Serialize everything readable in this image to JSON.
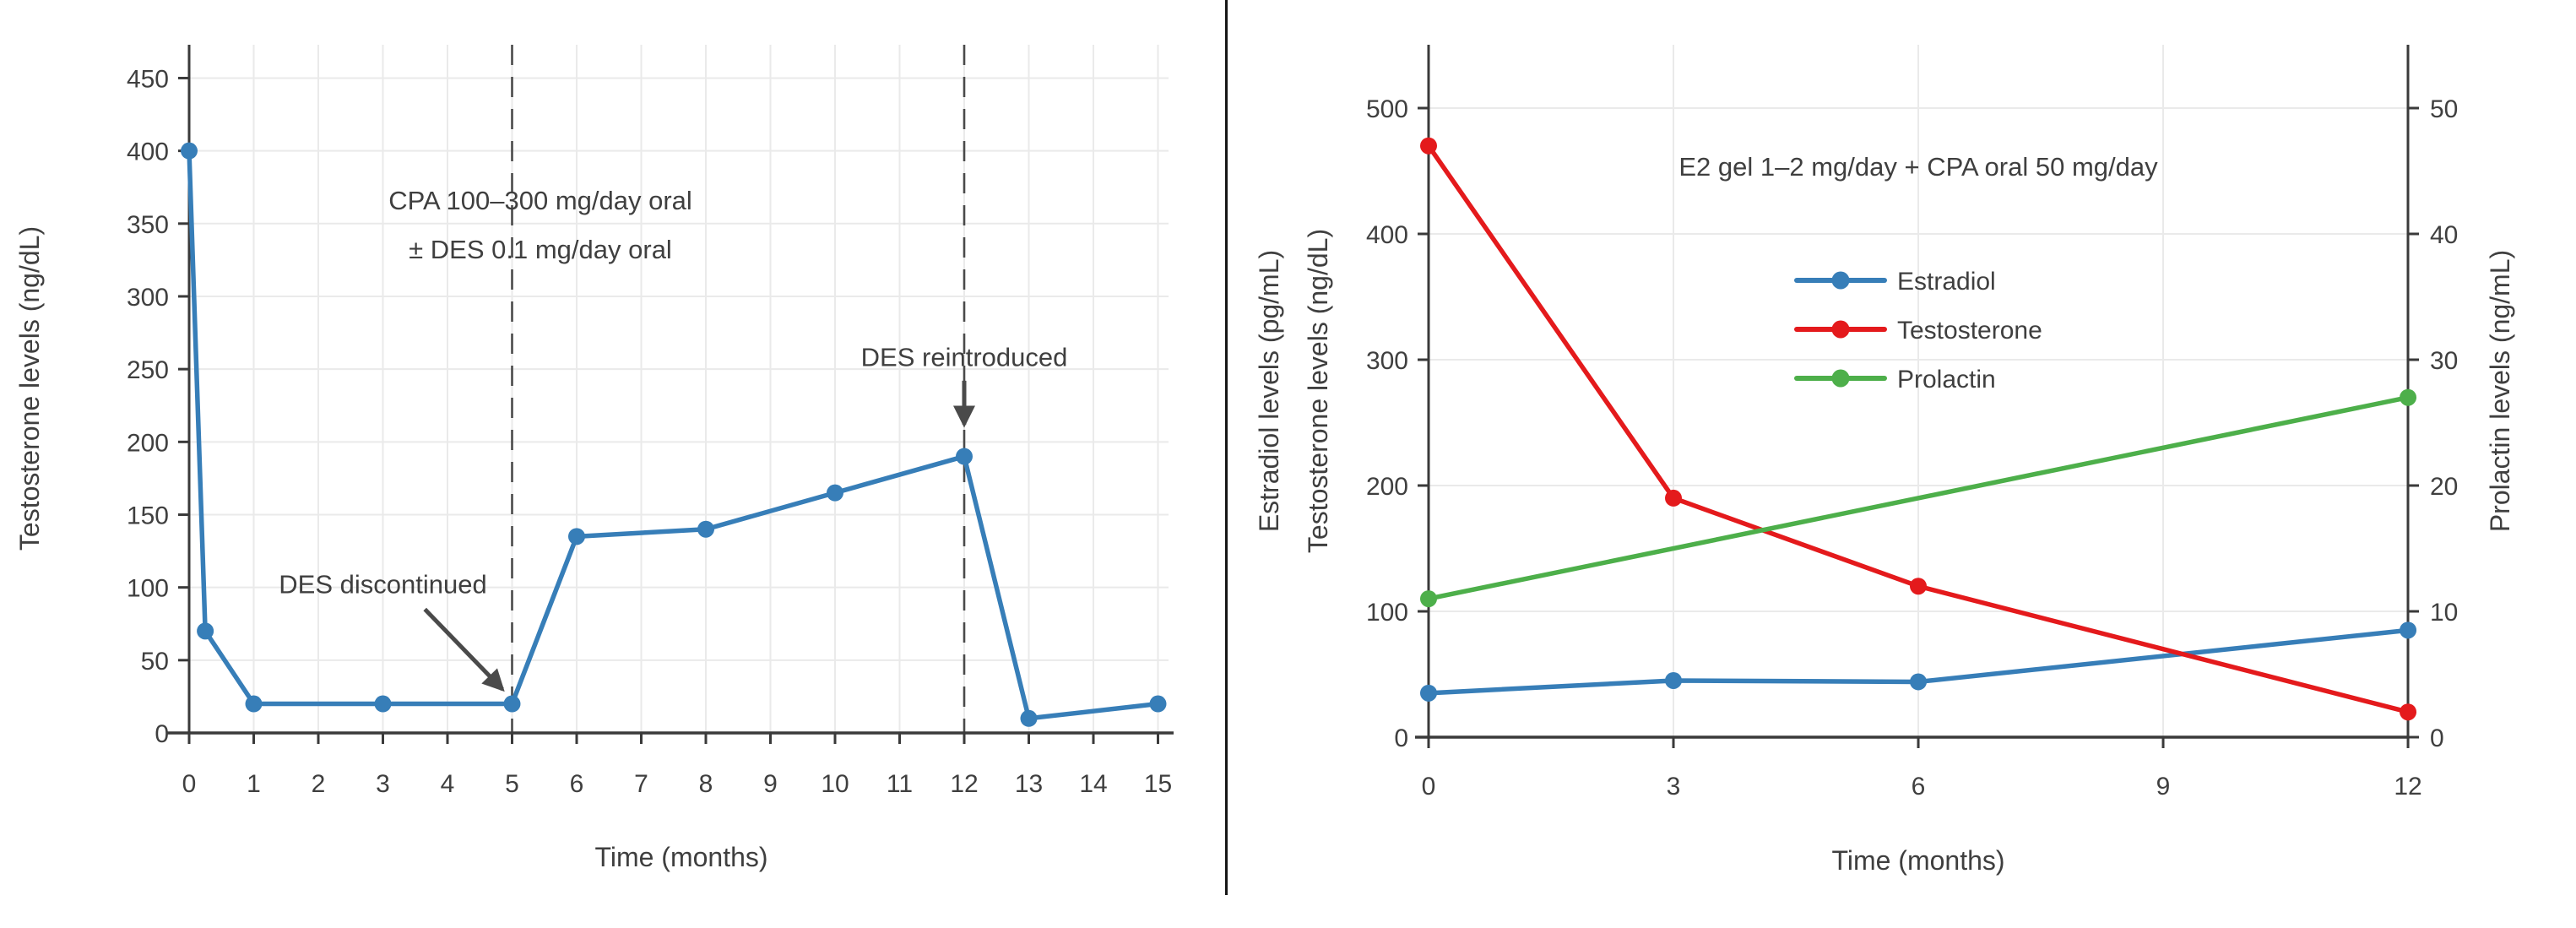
{
  "figure": {
    "background": "#ffffff",
    "text_color": "#3f3f3f",
    "grid_color": "#eaeaea",
    "spine_color": "#3a3a3a",
    "annotation_color": "#4a4a4a"
  },
  "chart_data": [
    {
      "id": "cpa-des-oral-chart",
      "type": "line",
      "inplot_label_lines": [
        "CPA 100–300 mg/day oral",
        "± DES 0.1 mg/day oral"
      ],
      "xlabel": "Time (months)",
      "ylabel": "Testosterone levels (ng/dL)",
      "x_ticks": [
        0,
        1,
        2,
        3,
        4,
        5,
        6,
        7,
        8,
        9,
        10,
        11,
        12,
        13,
        14,
        15
      ],
      "y_ticks": [
        0,
        50,
        100,
        150,
        200,
        250,
        300,
        350,
        400,
        450
      ],
      "xlim": [
        -0.4,
        15.3
      ],
      "ylim": [
        0,
        473
      ],
      "grid": true,
      "legend_position": "none",
      "dashed_vlines_x": [
        5,
        12
      ],
      "series": [
        {
          "name": "Testosterone",
          "color": "#377eb8",
          "x": [
            0,
            0.25,
            1,
            3,
            5,
            6,
            8,
            10,
            12,
            13,
            15
          ],
          "y": [
            400,
            70,
            20,
            20,
            20,
            135,
            140,
            165,
            190,
            10,
            20
          ]
        }
      ],
      "annotations": [
        {
          "text": "DES discontinued",
          "text_x": 3.0,
          "text_y": 96,
          "arrow": {
            "x1": 3.65,
            "y1": 85,
            "x2": 4.85,
            "y2": 30
          }
        },
        {
          "text": "DES reintroduced",
          "text_x": 12,
          "text_y": 252,
          "arrow": {
            "x1": 12,
            "y1": 242,
            "x2": 12,
            "y2": 212
          }
        }
      ]
    },
    {
      "id": "e2-gel-cpa-chart",
      "type": "line",
      "title": "E2 gel 1–2 mg/day + CPA oral 50 mg/day",
      "xlabel": "Time (months)",
      "ylabel_left_outer": "Estradiol levels (pg/mL)",
      "ylabel_left_inner": "Testosterone levels (ng/dL)",
      "ylabel_right": "Prolactin levels (ng/mL)",
      "x_ticks": [
        0,
        3,
        6,
        9,
        12
      ],
      "y_ticks_left": [
        0,
        100,
        200,
        300,
        400,
        500
      ],
      "y_ticks_right": [
        0,
        10,
        20,
        30,
        40,
        50
      ],
      "xlim": [
        0,
        12
      ],
      "ylim_left": [
        0,
        550
      ],
      "ylim_right": [
        0,
        55
      ],
      "grid": true,
      "legend_position": "upper-right-inside",
      "legend": [
        {
          "label": "Estradiol",
          "color": "#377eb8"
        },
        {
          "label": "Testosterone",
          "color": "#e41a1c"
        },
        {
          "label": "Prolactin",
          "color": "#4daf4a"
        }
      ],
      "series": [
        {
          "name": "Estradiol",
          "axis": "left",
          "color": "#377eb8",
          "x": [
            0,
            3,
            6,
            12
          ],
          "y": [
            35,
            45,
            44,
            85
          ]
        },
        {
          "name": "Testosterone",
          "axis": "left",
          "color": "#e41a1c",
          "x": [
            0,
            3,
            6,
            12
          ],
          "y": [
            470,
            190,
            120,
            20
          ]
        },
        {
          "name": "Prolactin",
          "axis": "right",
          "color": "#4daf4a",
          "x": [
            0,
            12
          ],
          "y": [
            11,
            27
          ]
        }
      ]
    }
  ]
}
